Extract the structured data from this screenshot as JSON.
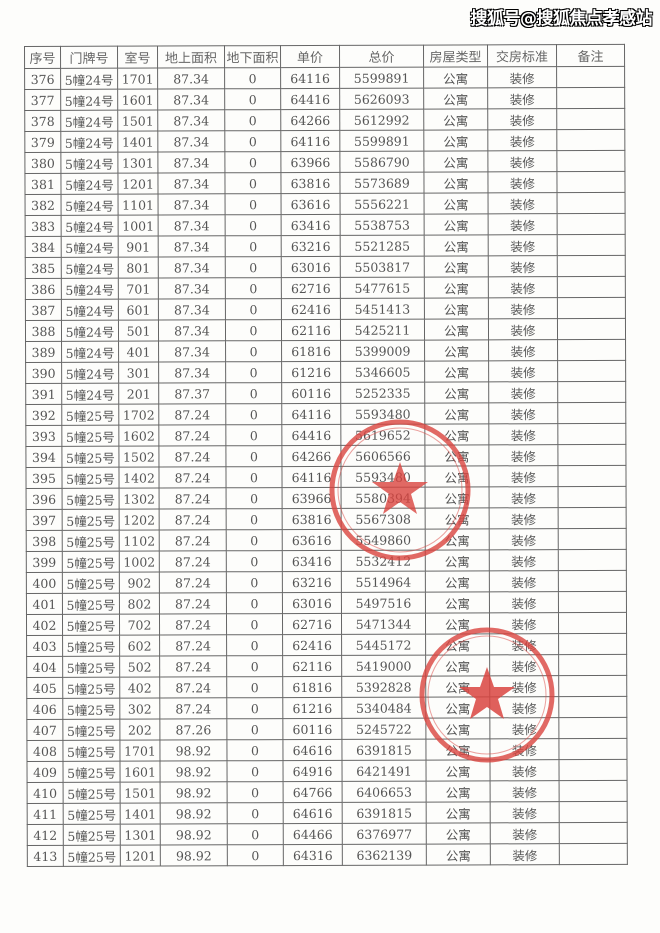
{
  "watermark": "搜狐号@搜狐焦点孝感站",
  "table": {
    "headers": [
      "序号",
      "门牌号",
      "室号",
      "地上面积",
      "地下面积",
      "单价",
      "总价",
      "房屋类型",
      "交房标准",
      "备注"
    ],
    "rows": [
      [
        "376",
        "5幢24号",
        "1701",
        "87.34",
        "0",
        "64116",
        "5599891",
        "公寓",
        "装修",
        ""
      ],
      [
        "377",
        "5幢24号",
        "1601",
        "87.34",
        "0",
        "64416",
        "5626093",
        "公寓",
        "装修",
        ""
      ],
      [
        "378",
        "5幢24号",
        "1501",
        "87.34",
        "0",
        "64266",
        "5612992",
        "公寓",
        "装修",
        ""
      ],
      [
        "379",
        "5幢24号",
        "1401",
        "87.34",
        "0",
        "64116",
        "5599891",
        "公寓",
        "装修",
        ""
      ],
      [
        "380",
        "5幢24号",
        "1301",
        "87.34",
        "0",
        "63966",
        "5586790",
        "公寓",
        "装修",
        ""
      ],
      [
        "381",
        "5幢24号",
        "1201",
        "87.34",
        "0",
        "63816",
        "5573689",
        "公寓",
        "装修",
        ""
      ],
      [
        "382",
        "5幢24号",
        "1101",
        "87.34",
        "0",
        "63616",
        "5556221",
        "公寓",
        "装修",
        ""
      ],
      [
        "383",
        "5幢24号",
        "1001",
        "87.34",
        "0",
        "63416",
        "5538753",
        "公寓",
        "装修",
        ""
      ],
      [
        "384",
        "5幢24号",
        "901",
        "87.34",
        "0",
        "63216",
        "5521285",
        "公寓",
        "装修",
        ""
      ],
      [
        "385",
        "5幢24号",
        "801",
        "87.34",
        "0",
        "63016",
        "5503817",
        "公寓",
        "装修",
        ""
      ],
      [
        "386",
        "5幢24号",
        "701",
        "87.34",
        "0",
        "62716",
        "5477615",
        "公寓",
        "装修",
        ""
      ],
      [
        "387",
        "5幢24号",
        "601",
        "87.34",
        "0",
        "62416",
        "5451413",
        "公寓",
        "装修",
        ""
      ],
      [
        "388",
        "5幢24号",
        "501",
        "87.34",
        "0",
        "62116",
        "5425211",
        "公寓",
        "装修",
        ""
      ],
      [
        "389",
        "5幢24号",
        "401",
        "87.34",
        "0",
        "61816",
        "5399009",
        "公寓",
        "装修",
        ""
      ],
      [
        "390",
        "5幢24号",
        "301",
        "87.34",
        "0",
        "61216",
        "5346605",
        "公寓",
        "装修",
        ""
      ],
      [
        "391",
        "5幢24号",
        "201",
        "87.37",
        "0",
        "60116",
        "5252335",
        "公寓",
        "装修",
        ""
      ],
      [
        "392",
        "5幢25号",
        "1702",
        "87.24",
        "0",
        "64116",
        "5593480",
        "公寓",
        "装修",
        ""
      ],
      [
        "393",
        "5幢25号",
        "1602",
        "87.24",
        "0",
        "64416",
        "5619652",
        "公寓",
        "装修",
        ""
      ],
      [
        "394",
        "5幢25号",
        "1502",
        "87.24",
        "0",
        "64266",
        "5606566",
        "公寓",
        "装修",
        ""
      ],
      [
        "395",
        "5幢25号",
        "1402",
        "87.24",
        "0",
        "64116",
        "5593480",
        "公寓",
        "装修",
        ""
      ],
      [
        "396",
        "5幢25号",
        "1302",
        "87.24",
        "0",
        "63966",
        "5580394",
        "公寓",
        "装修",
        ""
      ],
      [
        "397",
        "5幢25号",
        "1202",
        "87.24",
        "0",
        "63816",
        "5567308",
        "公寓",
        "装修",
        ""
      ],
      [
        "398",
        "5幢25号",
        "1102",
        "87.24",
        "0",
        "63616",
        "5549860",
        "公寓",
        "装修",
        ""
      ],
      [
        "399",
        "5幢25号",
        "1002",
        "87.24",
        "0",
        "63416",
        "5532412",
        "公寓",
        "装修",
        ""
      ],
      [
        "400",
        "5幢25号",
        "902",
        "87.24",
        "0",
        "63216",
        "5514964",
        "公寓",
        "装修",
        ""
      ],
      [
        "401",
        "5幢25号",
        "802",
        "87.24",
        "0",
        "63016",
        "5497516",
        "公寓",
        "装修",
        ""
      ],
      [
        "402",
        "5幢25号",
        "702",
        "87.24",
        "0",
        "62716",
        "5471344",
        "公寓",
        "装修",
        ""
      ],
      [
        "403",
        "5幢25号",
        "602",
        "87.24",
        "0",
        "62416",
        "5445172",
        "公寓",
        "装修",
        ""
      ],
      [
        "404",
        "5幢25号",
        "502",
        "87.24",
        "0",
        "62116",
        "5419000",
        "公寓",
        "装修",
        ""
      ],
      [
        "405",
        "5幢25号",
        "402",
        "87.24",
        "0",
        "61816",
        "5392828",
        "公寓",
        "装修",
        ""
      ],
      [
        "406",
        "5幢25号",
        "302",
        "87.24",
        "0",
        "61216",
        "5340484",
        "公寓",
        "装修",
        ""
      ],
      [
        "407",
        "5幢25号",
        "202",
        "87.26",
        "0",
        "60116",
        "5245722",
        "公寓",
        "装修",
        ""
      ],
      [
        "408",
        "5幢25号",
        "1701",
        "98.92",
        "0",
        "64616",
        "6391815",
        "公寓",
        "装修",
        ""
      ],
      [
        "409",
        "5幢25号",
        "1601",
        "98.92",
        "0",
        "64916",
        "6421491",
        "公寓",
        "装修",
        ""
      ],
      [
        "410",
        "5幢25号",
        "1501",
        "98.92",
        "0",
        "64766",
        "6406653",
        "公寓",
        "装修",
        ""
      ],
      [
        "411",
        "5幢25号",
        "1401",
        "98.92",
        "0",
        "64616",
        "6391815",
        "公寓",
        "装修",
        ""
      ],
      [
        "412",
        "5幢25号",
        "1301",
        "98.92",
        "0",
        "64466",
        "6376977",
        "公寓",
        "装修",
        ""
      ],
      [
        "413",
        "5幢25号",
        "1201",
        "98.92",
        "0",
        "64316",
        "6362139",
        "公寓",
        "装修",
        ""
      ]
    ]
  },
  "colors": {
    "stamp": "#d9443f",
    "grid": "#666666"
  }
}
